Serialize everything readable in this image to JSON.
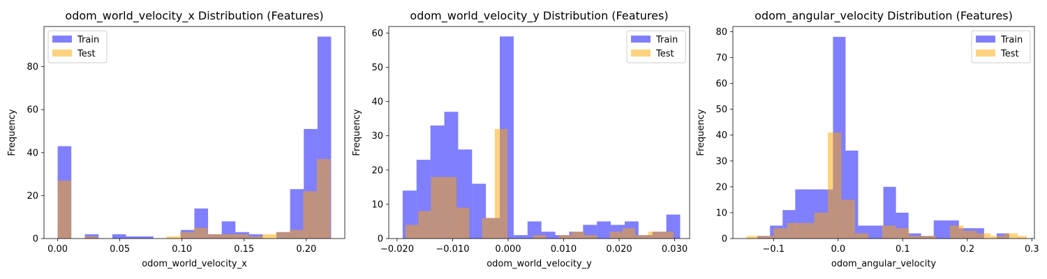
{
  "chart_data": [
    {
      "type": "bar",
      "title": "odom_world_velocity_x Distribution (Features)",
      "xlabel": "odom_world_velocity_x",
      "ylabel": "Frequency",
      "xlim": [
        -0.011,
        0.231
      ],
      "ylim": [
        0,
        98.7
      ],
      "xticks": [
        0.0,
        0.05,
        0.1,
        0.15,
        0.2
      ],
      "xtick_labels": [
        "0.00",
        "0.05",
        "0.10",
        "0.15",
        "0.20"
      ],
      "yticks": [
        0,
        20,
        40,
        60,
        80
      ],
      "yticks_labels": [
        "0",
        "20",
        "40",
        "60",
        "80"
      ],
      "legend_position": "top-left",
      "series": [
        {
          "name": "Train",
          "color": "#0000ff",
          "bins": [
            [
              0.0,
              0.011,
              43
            ],
            [
              0.011,
              0.022,
              0
            ],
            [
              0.022,
              0.033,
              2
            ],
            [
              0.033,
              0.044,
              0
            ],
            [
              0.044,
              0.055,
              2
            ],
            [
              0.055,
              0.066,
              1
            ],
            [
              0.066,
              0.077,
              1
            ],
            [
              0.077,
              0.088,
              0
            ],
            [
              0.088,
              0.099,
              0
            ],
            [
              0.099,
              0.11,
              4
            ],
            [
              0.11,
              0.121,
              14
            ],
            [
              0.121,
              0.132,
              2
            ],
            [
              0.132,
              0.143,
              8
            ],
            [
              0.143,
              0.154,
              3
            ],
            [
              0.154,
              0.165,
              2
            ],
            [
              0.165,
              0.176,
              0
            ],
            [
              0.176,
              0.187,
              3
            ],
            [
              0.187,
              0.198,
              23
            ],
            [
              0.198,
              0.209,
              51
            ],
            [
              0.209,
              0.22,
              94
            ]
          ]
        },
        {
          "name": "Test",
          "color": "#ffa500",
          "bins": [
            [
              0.0,
              0.011,
              27
            ],
            [
              0.0215,
              0.0325,
              1
            ],
            [
              0.0875,
              0.0985,
              1
            ],
            [
              0.0985,
              0.1095,
              3
            ],
            [
              0.1095,
              0.1205,
              5
            ],
            [
              0.1205,
              0.1315,
              2
            ],
            [
              0.1315,
              0.1425,
              2
            ],
            [
              0.1425,
              0.1535,
              2
            ],
            [
              0.1535,
              0.1645,
              1
            ],
            [
              0.1645,
              0.1755,
              2
            ],
            [
              0.1755,
              0.1865,
              3
            ],
            [
              0.1865,
              0.1975,
              4
            ],
            [
              0.1975,
              0.2085,
              22
            ],
            [
              0.2085,
              0.2195,
              37
            ]
          ]
        }
      ]
    },
    {
      "type": "bar",
      "title": "odom_world_velocity_y Distribution (Features)",
      "xlabel": "odom_world_velocity_y",
      "ylabel": "Frequency",
      "xlim": [
        -0.0215,
        0.0327
      ],
      "ylim": [
        0,
        61.9
      ],
      "xticks": [
        -0.02,
        -0.01,
        0.0,
        0.01,
        0.02,
        0.03
      ],
      "xtick_labels": [
        "−0.020",
        "−0.010",
        "0.000",
        "0.010",
        "0.020",
        "0.030"
      ],
      "yticks": [
        0,
        10,
        20,
        30,
        40,
        50,
        60
      ],
      "yticks_labels": [
        "0",
        "10",
        "20",
        "30",
        "40",
        "50",
        "60"
      ],
      "legend_position": "top-right",
      "series": [
        {
          "name": "Train",
          "color": "#0000ff",
          "bins": [
            [
              -0.019,
              -0.0165,
              14
            ],
            [
              -0.0165,
              -0.014,
              23
            ],
            [
              -0.014,
              -0.0115,
              33
            ],
            [
              -0.0115,
              -0.009,
              37
            ],
            [
              -0.009,
              -0.0065,
              26
            ],
            [
              -0.0065,
              -0.004,
              16
            ],
            [
              -0.004,
              -0.0015,
              6
            ],
            [
              -0.0015,
              0.001,
              59
            ],
            [
              0.001,
              0.0035,
              1
            ],
            [
              0.0035,
              0.006,
              5
            ],
            [
              0.006,
              0.0085,
              2
            ],
            [
              0.0085,
              0.011,
              1
            ],
            [
              0.011,
              0.0135,
              2
            ],
            [
              0.0135,
              0.016,
              4
            ],
            [
              0.016,
              0.0185,
              5
            ],
            [
              0.0185,
              0.021,
              4
            ],
            [
              0.021,
              0.0235,
              5
            ],
            [
              0.0235,
              0.026,
              1
            ],
            [
              0.026,
              0.0285,
              2
            ],
            [
              0.0285,
              0.031,
              7
            ]
          ]
        },
        {
          "name": "Test",
          "color": "#ffa500",
          "bins": [
            [
              -0.0185,
              -0.0162,
              4
            ],
            [
              -0.0162,
              -0.0139,
              8
            ],
            [
              -0.0139,
              -0.0116,
              18
            ],
            [
              -0.0116,
              -0.0093,
              18
            ],
            [
              -0.0093,
              -0.007,
              9
            ],
            [
              -0.0047,
              -0.0024,
              6
            ],
            [
              -0.0024,
              -0.0001,
              32
            ],
            [
              0.0045,
              0.0068,
              1
            ],
            [
              0.0091,
              0.0114,
              1
            ],
            [
              0.0114,
              0.0137,
              2
            ],
            [
              0.0137,
              0.016,
              1
            ],
            [
              0.0183,
              0.0206,
              2
            ],
            [
              0.0206,
              0.0229,
              3
            ],
            [
              0.0229,
              0.0252,
              1
            ],
            [
              0.0252,
              0.0275,
              2
            ],
            [
              0.0275,
              0.0298,
              2
            ]
          ]
        }
      ]
    },
    {
      "type": "bar",
      "title": "odom_angular_velocity Distribution (Features)",
      "xlabel": "odom_angular_velocity",
      "ylabel": "Frequency",
      "xlim": [
        -0.163,
        0.304
      ],
      "ylim": [
        0,
        82
      ],
      "xticks": [
        -0.1,
        0.0,
        0.1,
        0.2,
        0.3
      ],
      "xtick_labels": [
        "−0.1",
        "0.0",
        "0.1",
        "0.2",
        "0.3"
      ],
      "yticks": [
        0,
        10,
        20,
        30,
        40,
        50,
        60,
        70,
        80
      ],
      "yticks_labels": [
        "0",
        "10",
        "20",
        "30",
        "40",
        "50",
        "60",
        "70",
        "80"
      ],
      "legend_position": "top-right",
      "series": [
        {
          "name": "Train",
          "color": "#0000ff",
          "bins": [
            [
              -0.125,
              -0.1055,
              1
            ],
            [
              -0.1055,
              -0.086,
              5
            ],
            [
              -0.086,
              -0.0665,
              11
            ],
            [
              -0.0665,
              -0.047,
              19
            ],
            [
              -0.047,
              -0.0275,
              19
            ],
            [
              -0.0275,
              -0.008,
              19
            ],
            [
              -0.008,
              0.0115,
              78
            ],
            [
              0.0115,
              0.031,
              34
            ],
            [
              0.031,
              0.0505,
              5
            ],
            [
              0.0505,
              0.07,
              5
            ],
            [
              0.07,
              0.0895,
              20
            ],
            [
              0.0895,
              0.109,
              10
            ],
            [
              0.109,
              0.1285,
              2
            ],
            [
              0.1285,
              0.148,
              1
            ],
            [
              0.148,
              0.1675,
              7
            ],
            [
              0.1675,
              0.187,
              7
            ],
            [
              0.187,
              0.2065,
              4
            ],
            [
              0.2065,
              0.226,
              4
            ],
            [
              0.226,
              0.2455,
              0
            ],
            [
              0.2455,
              0.265,
              2
            ]
          ]
        },
        {
          "name": "Test",
          "color": "#ffa500",
          "bins": [
            [
              -0.142,
              -0.121,
              1
            ],
            [
              -0.121,
              -0.1,
              1
            ],
            [
              -0.1,
              -0.079,
              4
            ],
            [
              -0.079,
              -0.058,
              6
            ],
            [
              -0.058,
              -0.037,
              6
            ],
            [
              -0.037,
              -0.016,
              10
            ],
            [
              -0.016,
              0.005,
              41
            ],
            [
              0.005,
              0.026,
              15
            ],
            [
              0.026,
              0.047,
              2
            ],
            [
              0.068,
              0.089,
              5
            ],
            [
              0.089,
              0.11,
              4
            ],
            [
              0.11,
              0.131,
              1
            ],
            [
              0.131,
              0.152,
              1
            ],
            [
              0.173,
              0.194,
              5
            ],
            [
              0.194,
              0.215,
              3
            ],
            [
              0.215,
              0.236,
              2
            ],
            [
              0.236,
              0.257,
              1
            ],
            [
              0.257,
              0.278,
              2
            ],
            [
              0.278,
              0.292,
              1
            ]
          ]
        }
      ]
    }
  ]
}
